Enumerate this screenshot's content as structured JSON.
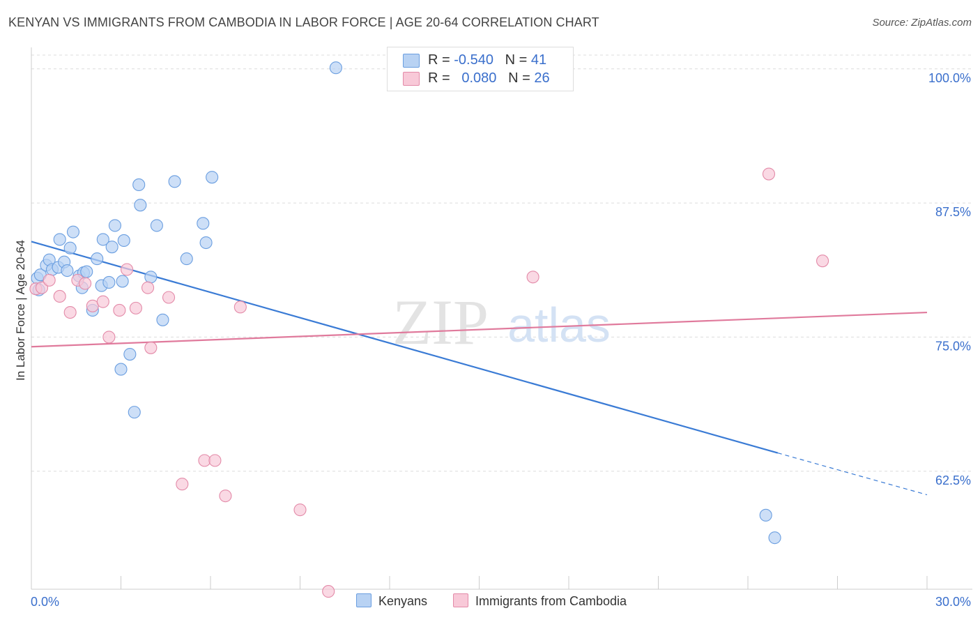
{
  "title": "KENYAN VS IMMIGRANTS FROM CAMBODIA IN LABOR FORCE | AGE 20-64 CORRELATION CHART",
  "source": "Source: ZipAtlas.com",
  "watermark": {
    "zip": "ZIP",
    "atlas": "atlas"
  },
  "legend": {
    "kenyans": {
      "r_label": "R =",
      "r_value": "-0.540",
      "n_label": "N =",
      "n_value": "41"
    },
    "cambodia": {
      "r_label": "R =",
      "r_value": "0.080",
      "n_label": "N =",
      "n_value": "26"
    }
  },
  "chart_data": {
    "type": "scatter",
    "title": "KENYAN VS IMMIGRANTS FROM CAMBODIA IN LABOR FORCE | AGE 20-64 CORRELATION CHART",
    "ylabel": "In Labor Force | Age 20-64",
    "xlabel": "",
    "xlim": [
      0,
      30
    ],
    "ylim": [
      51.5,
      102
    ],
    "x_tick_labels": [
      "0.0%",
      "30.0%"
    ],
    "y_ticks": [
      62.5,
      75.0,
      87.5,
      100.0
    ],
    "y_tick_labels": [
      "62.5%",
      "75.0%",
      "87.5%",
      "100.0%"
    ],
    "grid": true,
    "series": [
      {
        "name": "Kenyans",
        "color": "#6a9ee0",
        "fill": "#b8d2f3",
        "points": [
          [
            0.2,
            80.5
          ],
          [
            0.3,
            80.8
          ],
          [
            0.5,
            81.7
          ],
          [
            0.6,
            82.2
          ],
          [
            0.7,
            81.3
          ],
          [
            0.9,
            81.5
          ],
          [
            0.95,
            84.1
          ],
          [
            1.1,
            82.0
          ],
          [
            1.2,
            81.2
          ],
          [
            1.3,
            83.3
          ],
          [
            1.4,
            84.8
          ],
          [
            1.6,
            80.7
          ],
          [
            1.7,
            79.6
          ],
          [
            1.75,
            81.0
          ],
          [
            1.85,
            81.1
          ],
          [
            2.05,
            77.5
          ],
          [
            2.2,
            82.3
          ],
          [
            2.35,
            79.8
          ],
          [
            2.4,
            84.1
          ],
          [
            2.6,
            80.1
          ],
          [
            2.7,
            83.4
          ],
          [
            2.8,
            85.4
          ],
          [
            3.05,
            80.2
          ],
          [
            3.1,
            84.0
          ],
          [
            3.3,
            73.4
          ],
          [
            3.45,
            68.0
          ],
          [
            3.6,
            89.2
          ],
          [
            3.65,
            87.3
          ],
          [
            4.0,
            80.6
          ],
          [
            4.2,
            85.4
          ],
          [
            4.4,
            76.6
          ],
          [
            4.8,
            89.5
          ],
          [
            5.2,
            82.3
          ],
          [
            5.75,
            85.6
          ],
          [
            5.85,
            83.8
          ],
          [
            6.05,
            89.9
          ],
          [
            3.0,
            72.0
          ],
          [
            10.2,
            100.1
          ],
          [
            24.6,
            58.4
          ],
          [
            24.9,
            56.3
          ],
          [
            0.25,
            79.4
          ]
        ]
      },
      {
        "name": "Immigrants from Cambodia",
        "color": "#e38aa8",
        "fill": "#f8c9d8",
        "points": [
          [
            0.15,
            79.5
          ],
          [
            0.35,
            79.6
          ],
          [
            0.6,
            80.3
          ],
          [
            0.95,
            78.8
          ],
          [
            1.3,
            77.3
          ],
          [
            1.55,
            80.3
          ],
          [
            1.8,
            80.0
          ],
          [
            2.05,
            77.9
          ],
          [
            2.4,
            78.3
          ],
          [
            2.6,
            75.0
          ],
          [
            2.95,
            77.5
          ],
          [
            3.2,
            81.3
          ],
          [
            3.5,
            77.7
          ],
          [
            3.9,
            79.6
          ],
          [
            4.0,
            74.0
          ],
          [
            4.6,
            78.7
          ],
          [
            5.05,
            61.3
          ],
          [
            5.8,
            63.5
          ],
          [
            6.15,
            63.5
          ],
          [
            6.5,
            60.2
          ],
          [
            7.0,
            77.8
          ],
          [
            9.0,
            58.9
          ],
          [
            9.95,
            51.3
          ],
          [
            16.8,
            80.6
          ],
          [
            24.7,
            90.2
          ],
          [
            26.5,
            82.1
          ]
        ]
      }
    ],
    "trendlines": [
      {
        "series": "Kenyans",
        "x": [
          0,
          25.0
        ],
        "y": [
          83.9,
          64.2
        ],
        "extended_dashed_to": [
          30,
          60.3
        ]
      },
      {
        "series": "Immigrants from Cambodia",
        "x": [
          0,
          30
        ],
        "y": [
          74.1,
          77.3
        ]
      }
    ]
  },
  "bottom_legend": [
    "Kenyans",
    "Immigrants from Cambodia"
  ]
}
